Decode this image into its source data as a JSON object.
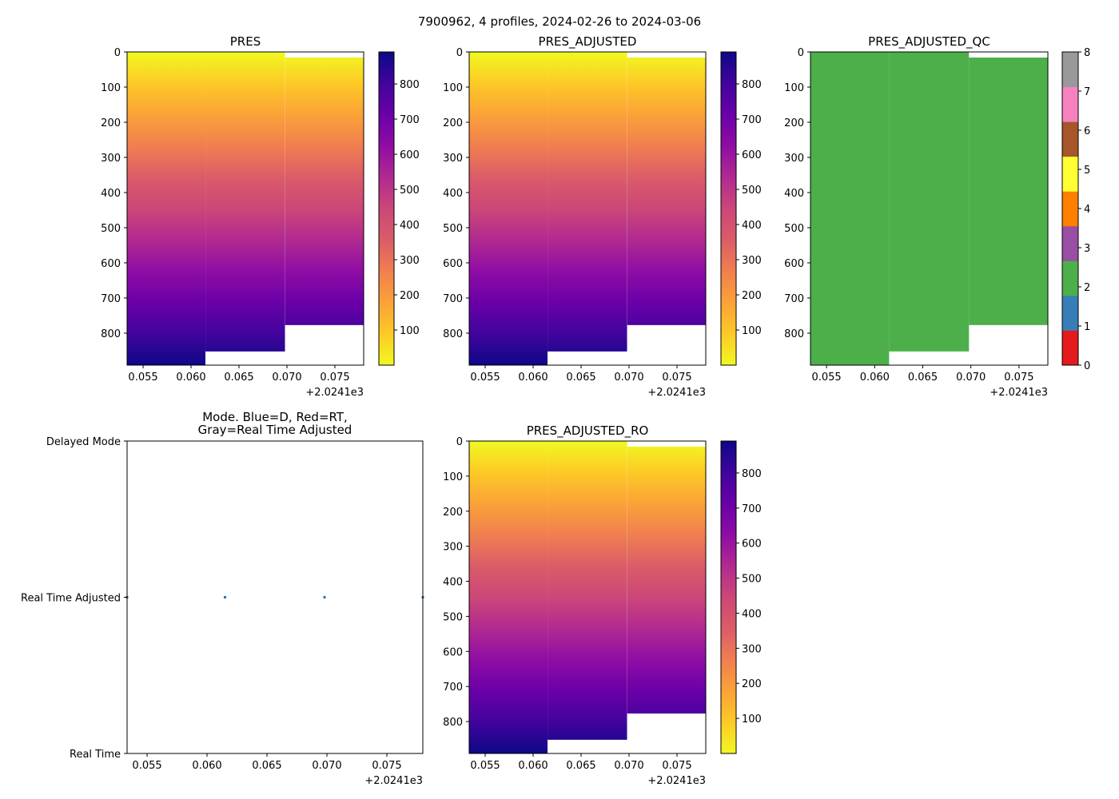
{
  "suptitle": "7900962, 4 profiles, 2024-02-26 to 2024-03-06",
  "chart_data": [
    {
      "id": "pres",
      "type": "heatmap",
      "title": "PRES",
      "colormap": "plasma_r",
      "x_offset_label": "+2.0241e3",
      "xlim": [
        0.05333,
        0.078
      ],
      "ylim": [
        891,
        0
      ],
      "xticks": [
        0.055,
        0.06,
        0.065,
        0.07,
        0.075
      ],
      "xtick_labels": [
        "0.055",
        "0.060",
        "0.065",
        "0.070",
        "0.075"
      ],
      "yticks": [
        0,
        100,
        200,
        300,
        400,
        500,
        600,
        700,
        800
      ],
      "ytick_labels": [
        "0",
        "100",
        "200",
        "300",
        "400",
        "500",
        "600",
        "700",
        "800"
      ],
      "colorbar": {
        "range": [
          0,
          891
        ],
        "ticks": [
          100,
          200,
          300,
          400,
          500,
          600,
          700,
          800
        ],
        "tick_labels": [
          "100",
          "200",
          "300",
          "400",
          "500",
          "600",
          "700",
          "800"
        ]
      },
      "columns": [
        {
          "x0": 0.05333,
          "x1": 0.0615,
          "top": 0,
          "bottom": 891
        },
        {
          "x0": 0.0615,
          "x1": 0.0698,
          "top": 0,
          "bottom": 852
        },
        {
          "x0": 0.0698,
          "x1": 0.078,
          "top": 16,
          "bottom": 777
        }
      ]
    },
    {
      "id": "pres_adjusted",
      "type": "heatmap",
      "title": "PRES_ADJUSTED",
      "colormap": "plasma_r",
      "x_offset_label": "+2.0241e3",
      "xlim": [
        0.05333,
        0.078
      ],
      "ylim": [
        891,
        0
      ],
      "xticks": [
        0.055,
        0.06,
        0.065,
        0.07,
        0.075
      ],
      "xtick_labels": [
        "0.055",
        "0.060",
        "0.065",
        "0.070",
        "0.075"
      ],
      "yticks": [
        0,
        100,
        200,
        300,
        400,
        500,
        600,
        700,
        800
      ],
      "ytick_labels": [
        "0",
        "100",
        "200",
        "300",
        "400",
        "500",
        "600",
        "700",
        "800"
      ],
      "colorbar": {
        "range": [
          0,
          891
        ],
        "ticks": [
          100,
          200,
          300,
          400,
          500,
          600,
          700,
          800
        ],
        "tick_labels": [
          "100",
          "200",
          "300",
          "400",
          "500",
          "600",
          "700",
          "800"
        ]
      },
      "columns": [
        {
          "x0": 0.05333,
          "x1": 0.0615,
          "top": 0,
          "bottom": 891
        },
        {
          "x0": 0.0615,
          "x1": 0.0698,
          "top": 0,
          "bottom": 852
        },
        {
          "x0": 0.0698,
          "x1": 0.078,
          "top": 16,
          "bottom": 777
        }
      ]
    },
    {
      "id": "pres_adjusted_qc",
      "type": "heatmap",
      "title": "PRES_ADJUSTED_QC",
      "colormap": "Set1 (discrete, 0-8)",
      "x_offset_label": "+2.0241e3",
      "xlim": [
        0.05333,
        0.078
      ],
      "ylim": [
        891,
        0
      ],
      "xticks": [
        0.055,
        0.06,
        0.065,
        0.07,
        0.075
      ],
      "xtick_labels": [
        "0.055",
        "0.060",
        "0.065",
        "0.070",
        "0.075"
      ],
      "yticks": [
        0,
        100,
        200,
        300,
        400,
        500,
        600,
        700,
        800
      ],
      "ytick_labels": [
        "0",
        "100",
        "200",
        "300",
        "400",
        "500",
        "600",
        "700",
        "800"
      ],
      "qc_value": 2,
      "colorbar": {
        "range": [
          0,
          8
        ],
        "ticks": [
          0,
          1,
          2,
          3,
          4,
          5,
          6,
          7,
          8
        ],
        "tick_labels": [
          "0",
          "1",
          "2",
          "3",
          "4",
          "5",
          "6",
          "7",
          "8"
        ],
        "colors": [
          "#e41a1c",
          "#377eb8",
          "#4daf4a",
          "#984ea3",
          "#ff7f00",
          "#ffff33",
          "#a65628",
          "#f781bf",
          "#999999"
        ]
      },
      "columns": [
        {
          "x0": 0.05333,
          "x1": 0.0615,
          "top": 0,
          "bottom": 891
        },
        {
          "x0": 0.0615,
          "x1": 0.0698,
          "top": 0,
          "bottom": 852
        },
        {
          "x0": 0.0698,
          "x1": 0.078,
          "top": 16,
          "bottom": 777
        }
      ]
    },
    {
      "id": "mode",
      "type": "scatter",
      "title": "Mode. Blue=D, Red=RT,\nGray=Real Time Adjusted",
      "title_lines": [
        "Mode. Blue=D, Red=RT,",
        "Gray=Real Time Adjusted"
      ],
      "x_offset_label": "+2.0241e3",
      "xlim": [
        0.05333,
        0.078
      ],
      "ylim": [
        0,
        2
      ],
      "xticks": [
        0.055,
        0.06,
        0.065,
        0.07,
        0.075
      ],
      "xtick_labels": [
        "0.055",
        "0.060",
        "0.065",
        "0.070",
        "0.075"
      ],
      "yticks": [
        2,
        1,
        0
      ],
      "ytick_labels": [
        "Delayed Mode",
        "Real Time Adjusted",
        "Real Time"
      ],
      "point_color": "#1f77b4",
      "points": [
        {
          "x": 0.05333,
          "y": 1
        },
        {
          "x": 0.0615,
          "y": 1
        },
        {
          "x": 0.0698,
          "y": 1
        },
        {
          "x": 0.078,
          "y": 1
        }
      ]
    },
    {
      "id": "pres_adjusted_ro",
      "type": "heatmap",
      "title": "PRES_ADJUSTED_RO",
      "colormap": "plasma_r",
      "x_offset_label": "+2.0241e3",
      "xlim": [
        0.05333,
        0.078
      ],
      "ylim": [
        891,
        0
      ],
      "xticks": [
        0.055,
        0.06,
        0.065,
        0.07,
        0.075
      ],
      "xtick_labels": [
        "0.055",
        "0.060",
        "0.065",
        "0.070",
        "0.075"
      ],
      "yticks": [
        0,
        100,
        200,
        300,
        400,
        500,
        600,
        700,
        800
      ],
      "ytick_labels": [
        "0",
        "100",
        "200",
        "300",
        "400",
        "500",
        "600",
        "700",
        "800"
      ],
      "colorbar": {
        "range": [
          0,
          891
        ],
        "ticks": [
          100,
          200,
          300,
          400,
          500,
          600,
          700,
          800
        ],
        "tick_labels": [
          "100",
          "200",
          "300",
          "400",
          "500",
          "600",
          "700",
          "800"
        ]
      },
      "columns": [
        {
          "x0": 0.05333,
          "x1": 0.0615,
          "top": 0,
          "bottom": 891
        },
        {
          "x0": 0.0615,
          "x1": 0.0698,
          "top": 0,
          "bottom": 852
        },
        {
          "x0": 0.0698,
          "x1": 0.078,
          "top": 16,
          "bottom": 777
        }
      ]
    }
  ]
}
